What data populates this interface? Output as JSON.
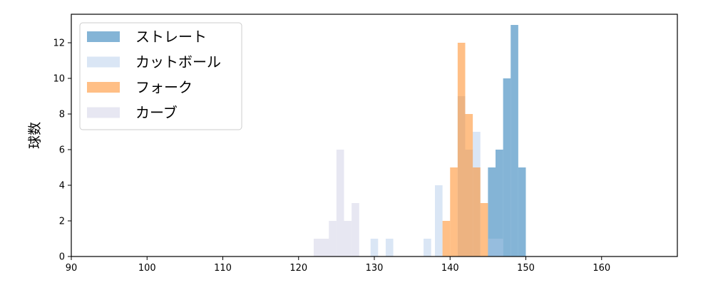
{
  "chart_data": {
    "type": "bar",
    "subtype": "histogram-overlay",
    "ylabel": "球数",
    "xlim": [
      90,
      170
    ],
    "ylim": [
      0,
      13.6
    ],
    "xticks": [
      90,
      100,
      110,
      120,
      130,
      140,
      150,
      160
    ],
    "yticks": [
      0,
      2,
      4,
      6,
      8,
      10,
      12
    ],
    "legend_position": "top-left",
    "grid": false,
    "series": [
      {
        "name": "ストレート",
        "color": "#1f77b4",
        "opacity": 0.55,
        "bins": [
          {
            "x0": 144,
            "x1": 145,
            "count": 0
          },
          {
            "x0": 145,
            "x1": 146,
            "count": 5
          },
          {
            "x0": 146,
            "x1": 147,
            "count": 6
          },
          {
            "x0": 147,
            "x1": 148,
            "count": 10
          },
          {
            "x0": 148,
            "x1": 149,
            "count": 13
          },
          {
            "x0": 149,
            "x1": 150,
            "count": 5
          }
        ]
      },
      {
        "name": "カットボール",
        "color": "#aec7e8",
        "opacity": 0.45,
        "bins": [
          {
            "x0": 129.5,
            "x1": 130.5,
            "count": 1
          },
          {
            "x0": 131.5,
            "x1": 132.5,
            "count": 1
          },
          {
            "x0": 136.5,
            "x1": 137.5,
            "count": 1
          },
          {
            "x0": 138,
            "x1": 139,
            "count": 4
          },
          {
            "x0": 141,
            "x1": 142,
            "count": 9
          },
          {
            "x0": 142,
            "x1": 143,
            "count": 6
          },
          {
            "x0": 143,
            "x1": 144,
            "count": 7
          },
          {
            "x0": 145,
            "x1": 146,
            "count": 1
          },
          {
            "x0": 146,
            "x1": 147,
            "count": 1
          }
        ]
      },
      {
        "name": "フォーク",
        "color": "#ff7f0e",
        "opacity": 0.5,
        "bins": [
          {
            "x0": 139,
            "x1": 140,
            "count": 2
          },
          {
            "x0": 140,
            "x1": 141,
            "count": 5
          },
          {
            "x0": 141,
            "x1": 142,
            "count": 12
          },
          {
            "x0": 142,
            "x1": 143,
            "count": 8
          },
          {
            "x0": 143,
            "x1": 144,
            "count": 5
          },
          {
            "x0": 144,
            "x1": 145,
            "count": 3
          }
        ]
      },
      {
        "name": "カーブ",
        "color": "#d0d0e6",
        "opacity": 0.5,
        "bins": [
          {
            "x0": 122,
            "x1": 124,
            "count": 1
          },
          {
            "x0": 124,
            "x1": 125,
            "count": 2
          },
          {
            "x0": 125,
            "x1": 126,
            "count": 6
          },
          {
            "x0": 126,
            "x1": 127,
            "count": 2
          },
          {
            "x0": 127,
            "x1": 128,
            "count": 3
          }
        ]
      }
    ]
  }
}
